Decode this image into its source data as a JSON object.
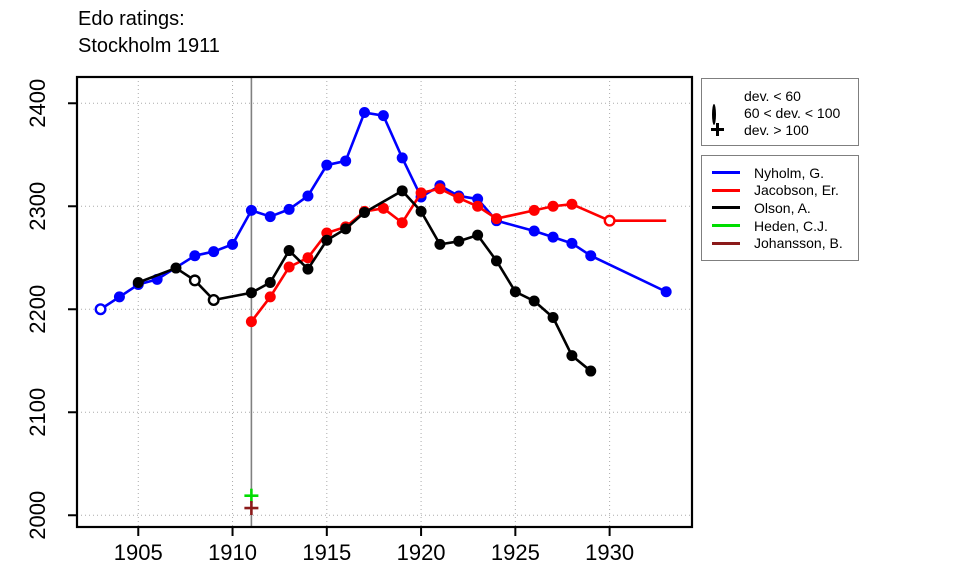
{
  "title": {
    "line1": "Edo ratings:",
    "line2": "Stockholm 1911"
  },
  "chart_data": {
    "type": "line",
    "title": "Edo ratings: Stockholm 1911",
    "xlabel": "",
    "ylabel": "",
    "x_ticks": [
      1905,
      1910,
      1915,
      1920,
      1925,
      1930
    ],
    "y_ticks": [
      2000,
      2100,
      2200,
      2300,
      2400
    ],
    "xlim": [
      1901.75,
      1934.37
    ],
    "ylim": [
      1988.6,
      2425.5
    ],
    "grid": true,
    "grid_color": "#ababab",
    "event_line": {
      "x": 1911,
      "color": "#808080"
    },
    "legend_position": "right",
    "marker_legend": [
      {
        "marker": "filled",
        "label": "dev. < 60"
      },
      {
        "marker": "open",
        "label": "60 < dev. < 100"
      },
      {
        "marker": "plus",
        "label": "dev. > 100"
      }
    ],
    "series": [
      {
        "name": "Nyholm, G.",
        "color": "#0000ff",
        "points": [
          [
            1903,
            2200,
            "open"
          ],
          [
            1904,
            2212,
            "filled"
          ],
          [
            1905,
            2224,
            "filled"
          ],
          [
            1906,
            2229,
            "filled"
          ],
          [
            1908,
            2252,
            "filled"
          ],
          [
            1909,
            2256,
            "filled"
          ],
          [
            1910,
            2263,
            "filled"
          ],
          [
            1911,
            2296,
            "filled"
          ],
          [
            1912,
            2290,
            "filled"
          ],
          [
            1913,
            2297,
            "filled"
          ],
          [
            1914,
            2310,
            "filled"
          ],
          [
            1915,
            2340,
            "filled"
          ],
          [
            1916,
            2344,
            "filled"
          ],
          [
            1917,
            2391,
            "filled"
          ],
          [
            1918,
            2388,
            "filled"
          ],
          [
            1919,
            2347,
            "filled"
          ],
          [
            1920,
            2309,
            "filled"
          ],
          [
            1921,
            2320,
            "filled"
          ],
          [
            1922,
            2310,
            "filled"
          ],
          [
            1923,
            2307,
            "filled"
          ],
          [
            1924,
            2286,
            "filled"
          ],
          [
            1926,
            2276,
            "filled"
          ],
          [
            1927,
            2270,
            "filled"
          ],
          [
            1928,
            2264,
            "filled"
          ],
          [
            1929,
            2252,
            "filled"
          ],
          [
            1933,
            2217,
            "filled"
          ]
        ]
      },
      {
        "name": "Jacobson, Er.",
        "color": "#ff0000",
        "points": [
          [
            1911,
            2188,
            "filled"
          ],
          [
            1912,
            2212,
            "filled"
          ],
          [
            1913,
            2241,
            "filled"
          ],
          [
            1914,
            2250,
            "filled"
          ],
          [
            1915,
            2274,
            "filled"
          ],
          [
            1916,
            2280,
            "filled"
          ],
          [
            1917,
            2295,
            "filled"
          ],
          [
            1918,
            2298,
            "filled"
          ],
          [
            1919,
            2284,
            "filled"
          ],
          [
            1920,
            2313,
            "filled"
          ],
          [
            1921,
            2317,
            "filled"
          ],
          [
            1922,
            2308,
            "filled"
          ],
          [
            1923,
            2300,
            "filled"
          ],
          [
            1924,
            2288,
            "filled"
          ],
          [
            1926,
            2296,
            "filled"
          ],
          [
            1927,
            2300,
            "filled"
          ],
          [
            1928,
            2302,
            "filled"
          ],
          [
            1930,
            2286,
            "open"
          ],
          [
            1933,
            2286,
            "none"
          ]
        ]
      },
      {
        "name": "Olson, A.",
        "color": "#000000",
        "points": [
          [
            1905,
            2226,
            "filled"
          ],
          [
            1907,
            2240,
            "filled"
          ],
          [
            1908,
            2228,
            "open"
          ],
          [
            1909,
            2209,
            "open"
          ],
          [
            1911,
            2216,
            "filled"
          ],
          [
            1912,
            2226,
            "filled"
          ],
          [
            1913,
            2257,
            "filled"
          ],
          [
            1914,
            2239,
            "filled"
          ],
          [
            1915,
            2267,
            "filled"
          ],
          [
            1916,
            2278,
            "filled"
          ],
          [
            1917,
            2294,
            "filled"
          ],
          [
            1919,
            2315,
            "filled"
          ],
          [
            1920,
            2295,
            "filled"
          ],
          [
            1921,
            2263,
            "filled"
          ],
          [
            1922,
            2266,
            "filled"
          ],
          [
            1923,
            2272,
            "filled"
          ],
          [
            1924,
            2247,
            "filled"
          ],
          [
            1925,
            2217,
            "filled"
          ],
          [
            1926,
            2208,
            "filled"
          ],
          [
            1927,
            2192,
            "filled"
          ],
          [
            1928,
            2155,
            "filled"
          ],
          [
            1929,
            2140,
            "filled"
          ]
        ]
      },
      {
        "name": "Heden, C.J.",
        "color": "#00dd00",
        "points": [
          [
            1911,
            2019,
            "plus"
          ]
        ]
      },
      {
        "name": "Johansson, B.",
        "color": "#8b1a1a",
        "points": [
          [
            1911,
            2007,
            "plus"
          ]
        ]
      }
    ]
  }
}
